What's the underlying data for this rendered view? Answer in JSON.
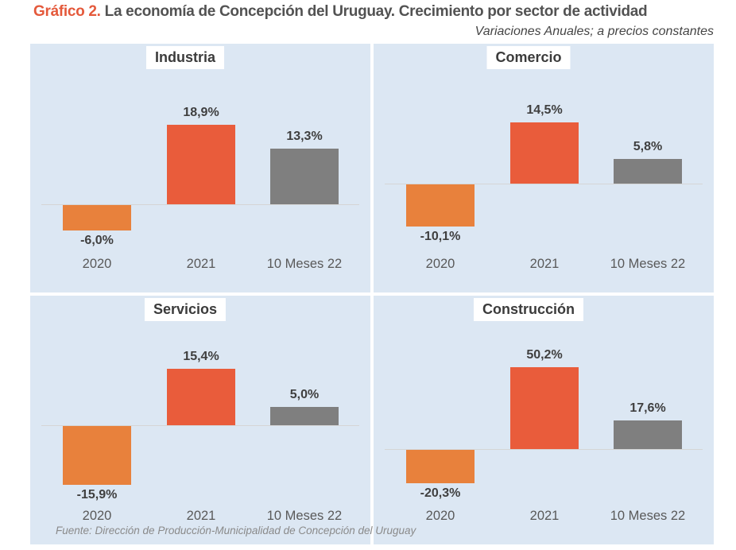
{
  "header": {
    "prefix": "Gráfico 2.",
    "title": " La economía de Concepción del Uruguay. Crecimiento por sector de actividad",
    "subtitle": "Variaciones Anuales; a precios constantes"
  },
  "footer": {
    "source": "Fuente: Dirección de Producción-Municipalidad de Concepción del Uruguay"
  },
  "colors": {
    "accent_title": "#E4593B",
    "panel_bg": "#DCE7F3",
    "bar_2020": "#E8813C",
    "bar_2021": "#E95C3B",
    "bar_10m22": "#7F7F7F",
    "axis_line": "#D5D5D5"
  },
  "chart_data": [
    {
      "type": "bar",
      "title": "Industria",
      "categories": [
        "2020",
        "2021",
        "10 Meses 22"
      ],
      "values": [
        -6.0,
        18.9,
        13.3
      ],
      "labels": [
        "-6,0%",
        "18,9%",
        "13,3%"
      ],
      "ylim": [
        -10,
        25
      ],
      "grid": false,
      "legend": "none"
    },
    {
      "type": "bar",
      "title": "Comercio",
      "categories": [
        "2020",
        "2021",
        "10 Meses 22"
      ],
      "values": [
        -10.1,
        14.5,
        5.8
      ],
      "labels": [
        "-10,1%",
        "14,5%",
        "5,8%"
      ],
      "ylim": [
        -15,
        20
      ],
      "grid": false,
      "legend": "none"
    },
    {
      "type": "bar",
      "title": "Servicios",
      "categories": [
        "2020",
        "2021",
        "10 Meses 22"
      ],
      "values": [
        -15.9,
        15.4,
        5.0
      ],
      "labels": [
        "-15,9%",
        "15,4%",
        "5,0%"
      ],
      "ylim": [
        -20,
        20
      ],
      "grid": false,
      "legend": "none"
    },
    {
      "type": "bar",
      "title": "Construcción",
      "categories": [
        "2020",
        "2021",
        "10 Meses 22"
      ],
      "values": [
        -20.3,
        50.2,
        17.6
      ],
      "labels": [
        "-20,3%",
        "50,2%",
        "17,6%"
      ],
      "ylim": [
        -30,
        60
      ],
      "grid": false,
      "legend": "none"
    }
  ]
}
